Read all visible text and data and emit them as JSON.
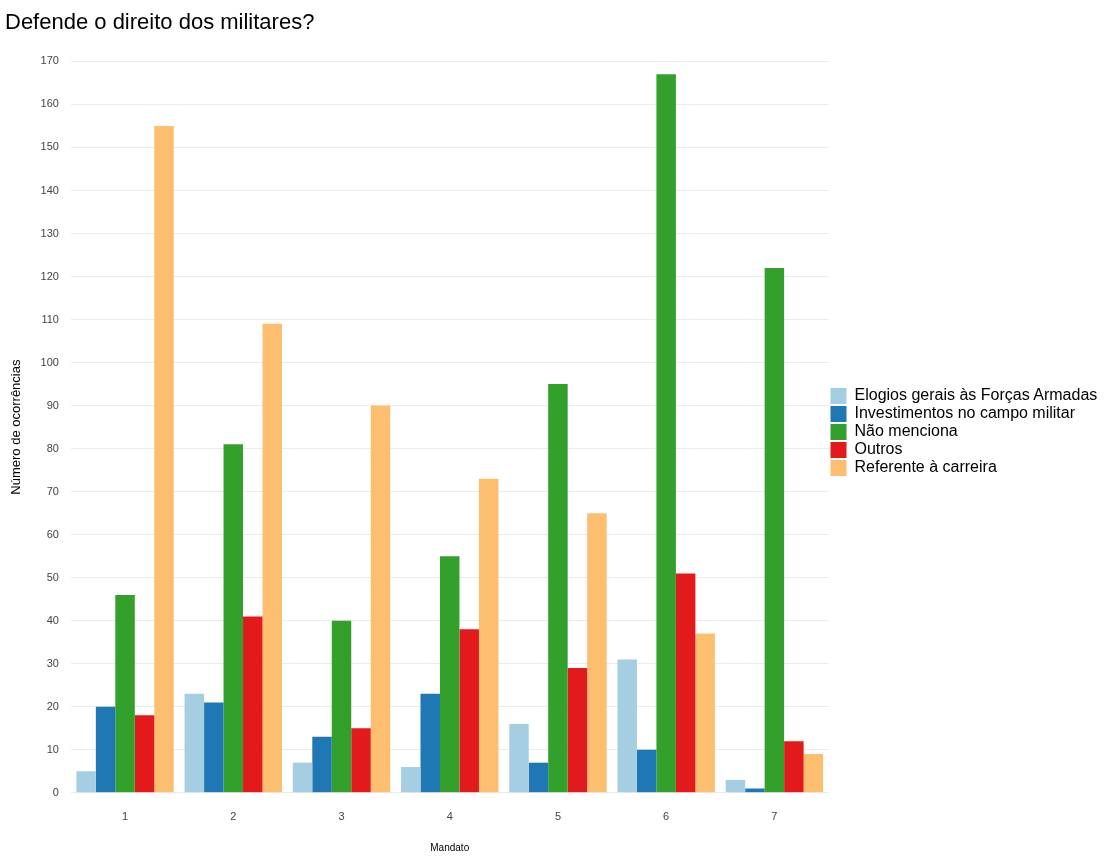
{
  "chart_data": {
    "type": "bar",
    "title": "Defende o direito dos militares?",
    "xlabel": "Mandato",
    "ylabel": "Número de ocorrências",
    "categories": [
      "1",
      "2",
      "3",
      "4",
      "5",
      "6",
      "7"
    ],
    "series": [
      {
        "name": "Elogios gerais às Forças Armadas",
        "color": "#a6cee3",
        "values": [
          5,
          23,
          7,
          6,
          16,
          31,
          3
        ]
      },
      {
        "name": "Investimentos no campo militar",
        "color": "#1f78b4",
        "values": [
          20,
          21,
          13,
          23,
          7,
          10,
          1
        ]
      },
      {
        "name": "Não menciona",
        "color": "#33a02c",
        "values": [
          46,
          81,
          40,
          55,
          95,
          167,
          122
        ]
      },
      {
        "name": "Outros",
        "color": "#e31a1c",
        "values": [
          18,
          41,
          15,
          38,
          29,
          51,
          12
        ]
      },
      {
        "name": "Referente à carreira",
        "color": "#fdbf6f",
        "values": [
          155,
          109,
          90,
          73,
          65,
          37,
          9
        ]
      }
    ],
    "ylim": [
      0,
      170
    ],
    "yticks": [
      0,
      10,
      20,
      30,
      40,
      50,
      60,
      70,
      80,
      90,
      100,
      110,
      120,
      130,
      140,
      150,
      160,
      170
    ],
    "grid": "y",
    "legend": "right"
  }
}
